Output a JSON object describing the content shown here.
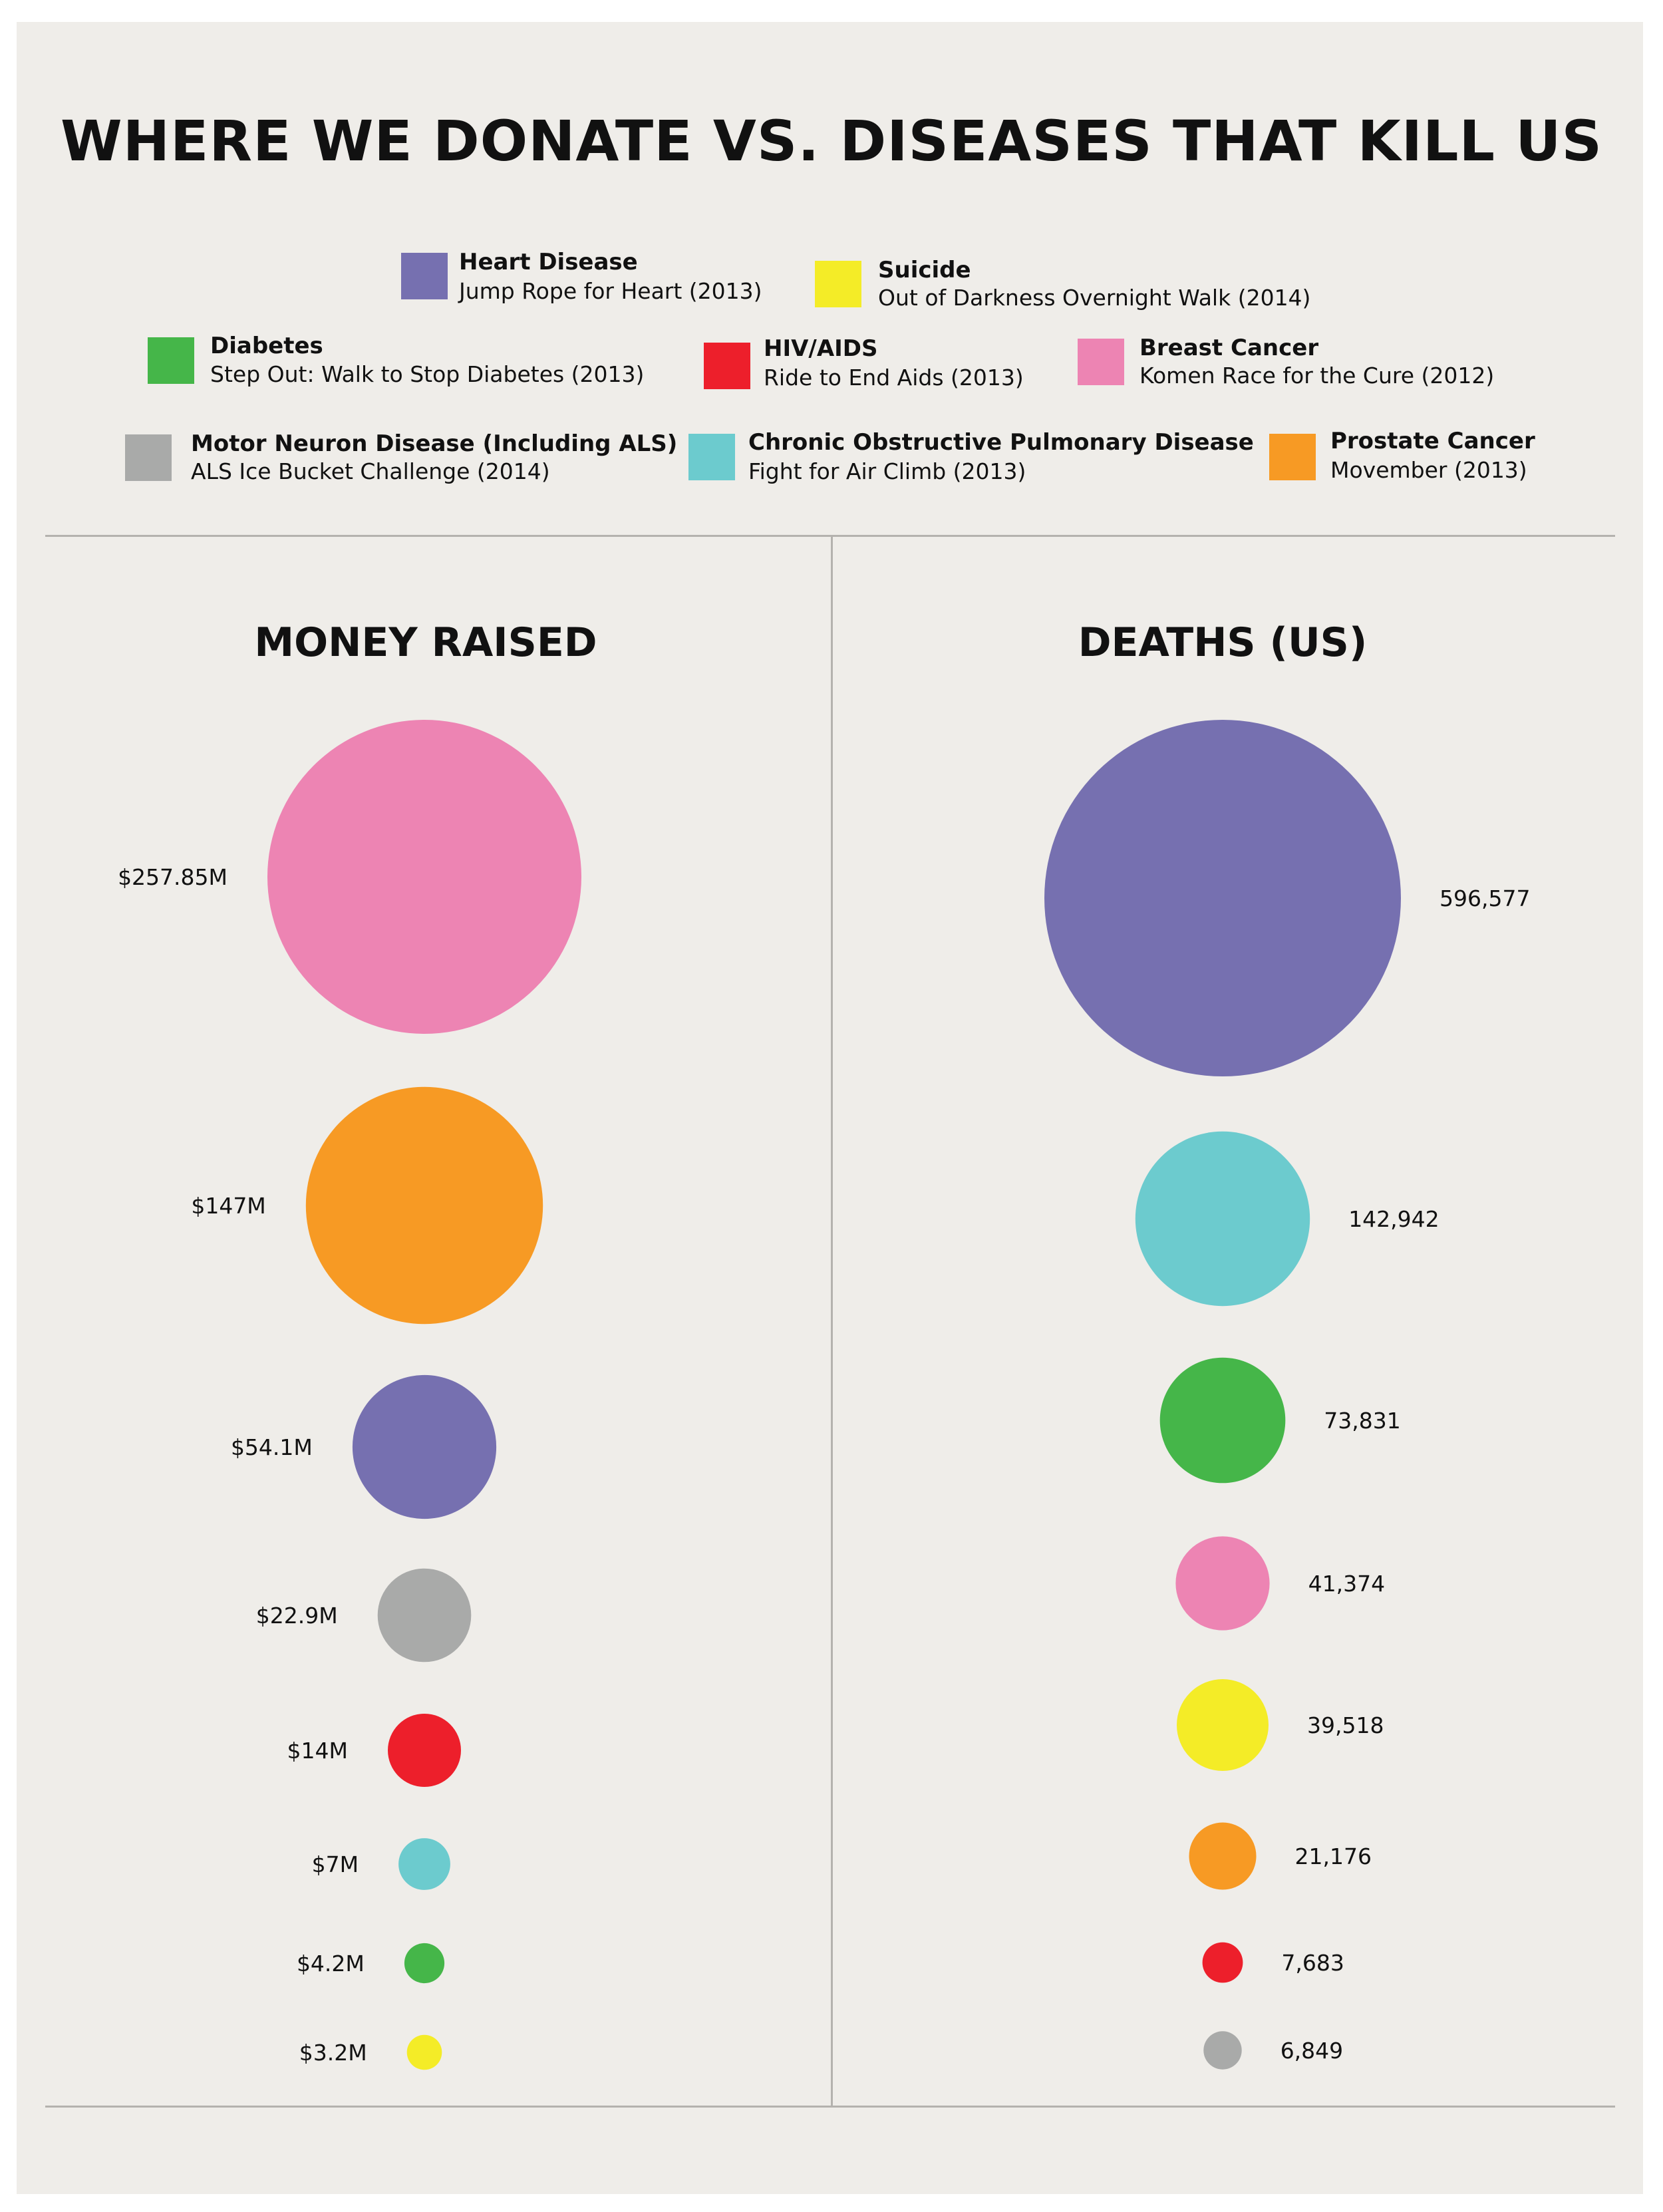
{
  "title": "WHERE WE DONATE VS. DISEASES THAT KILL US",
  "legend": [
    {
      "name": "Heart Disease",
      "event": "Jump Rope for Heart (2013)",
      "color": "#7670b0"
    },
    {
      "name": "Suicide",
      "event": "Out of Darkness Overnight Walk (2014)",
      "color": "#f4ec27"
    },
    {
      "name": "Diabetes",
      "event": "Step Out: Walk to Stop Diabetes (2013)",
      "color": "#45b649"
    },
    {
      "name": "HIV/AIDS",
      "event": "Ride to End Aids (2013)",
      "color": "#ed1f2b"
    },
    {
      "name": "Breast Cancer",
      "event": "Komen Race for the Cure (2012)",
      "color": "#ed84b3"
    },
    {
      "name": "Motor Neuron Disease (Including ALS)",
      "event": "ALS Ice Bucket Challenge (2014)",
      "color": "#a9aaa9"
    },
    {
      "name": "Chronic Obstructive Pulmonary Disease",
      "event": "Fight for Air Climb (2013)",
      "color": "#6ccbce"
    },
    {
      "name": "Prostate Cancer",
      "event": "Movember (2013)",
      "color": "#f79a24"
    }
  ],
  "columns": {
    "money_title": "MONEY RAISED",
    "deaths_title": "DEATHS (US)"
  },
  "chart_data": [
    {
      "type": "bubble",
      "title": "MONEY RAISED",
      "unit": "USD millions",
      "series": [
        {
          "category": "Breast Cancer",
          "value": 257.85,
          "label": "$257.85M"
        },
        {
          "category": "Prostate Cancer",
          "value": 147,
          "label": "$147M"
        },
        {
          "category": "Heart Disease",
          "value": 54.1,
          "label": "$54.1M"
        },
        {
          "category": "Motor Neuron Disease (Including ALS)",
          "value": 22.9,
          "label": "$22.9M"
        },
        {
          "category": "HIV/AIDS",
          "value": 14,
          "label": "$14M"
        },
        {
          "category": "Chronic Obstructive Pulmonary Disease",
          "value": 7,
          "label": "$7M"
        },
        {
          "category": "Diabetes",
          "value": 4.2,
          "label": "$4.2M"
        },
        {
          "category": "Suicide",
          "value": 3.2,
          "label": "$3.2M"
        }
      ]
    },
    {
      "type": "bubble",
      "title": "DEATHS (US)",
      "unit": "deaths",
      "series": [
        {
          "category": "Heart Disease",
          "value": 596577,
          "label": "596,577"
        },
        {
          "category": "Chronic Obstructive Pulmonary Disease",
          "value": 142942,
          "label": "142,942"
        },
        {
          "category": "Diabetes",
          "value": 73831,
          "label": "73,831"
        },
        {
          "category": "Breast Cancer",
          "value": 41374,
          "label": "41,374"
        },
        {
          "category": "Suicide",
          "value": 39518,
          "label": "39,518"
        },
        {
          "category": "Prostate Cancer",
          "value": 21176,
          "label": "21,176"
        },
        {
          "category": "HIV/AIDS",
          "value": 7683,
          "label": "7,683"
        },
        {
          "category": "Motor Neuron Disease (Including ALS)",
          "value": 6849,
          "label": "6,849"
        }
      ]
    }
  ]
}
